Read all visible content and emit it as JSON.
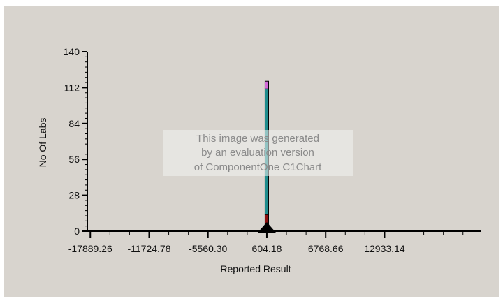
{
  "chart_data": {
    "type": "bar",
    "stacked": true,
    "xlabel": "Reported Result",
    "ylabel": "No Of Labs",
    "ylim": [
      0,
      140
    ],
    "y_ticks": [
      0,
      28,
      56,
      84,
      112,
      140
    ],
    "x_ticks": [
      "-17889.26",
      "-11724.78",
      "-5560.30",
      "604.18",
      "6768.66",
      "12933.14"
    ],
    "x_tick_values": [
      -17889.26,
      -11724.78,
      -5560.3,
      604.18,
      6768.66,
      12933.14
    ],
    "xlim": [
      -18200,
      23000
    ],
    "bar_center": 604.18,
    "bar_width": 370,
    "series": [
      {
        "values": [
          13
        ],
        "color": "#8b0f0f"
      },
      {
        "values": [
          98
        ],
        "color": "#1f8c8c"
      },
      {
        "values": [
          6
        ],
        "color": "#d26ad8"
      }
    ],
    "marker_x": 604.18,
    "watermark": [
      "This image was generated",
      "by an evaluation version",
      "of ComponentOne C1Chart"
    ],
    "colors": {
      "background": "#d8d4ce",
      "axis": "#000000"
    }
  }
}
